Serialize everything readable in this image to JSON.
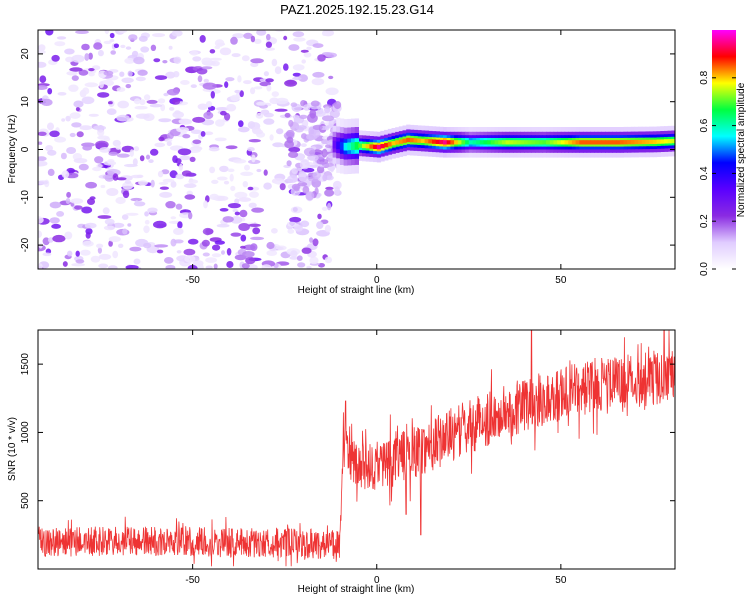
{
  "figure_title": "PAZ1.2025.192.15.23.G14",
  "chart_data": [
    {
      "type": "heatmap",
      "title": "PAZ1.2025.192.15.23.G14",
      "xlabel": "Height of straight line (km)",
      "ylabel": "Frequency (Hz)",
      "xlim": [
        -92,
        81
      ],
      "ylim": [
        -25,
        25
      ],
      "xticks": [
        -50,
        0,
        50
      ],
      "yticks": [
        -20,
        -10,
        0,
        10,
        20
      ],
      "colorbar": {
        "label": "Normalized spectral amplitude",
        "range": [
          0,
          1
        ],
        "ticks": [
          0.0,
          0.2,
          0.4,
          0.6,
          0.8
        ],
        "tick_labels": [
          "0.0",
          "0.2",
          "0.4",
          "0.6",
          "0.8"
        ],
        "colormap": [
          "#ffffff",
          "#e0ccff",
          "#8a2be2",
          "#5a00ff",
          "#0000ff",
          "#00ffff",
          "#00ff40",
          "#ffff00",
          "#ff0000",
          "#ff00ff"
        ]
      },
      "noise_region": {
        "x_range": [
          -92,
          -12
        ],
        "y_range": [
          -25,
          25
        ],
        "amplitude_range": [
          0.05,
          0.3
        ]
      },
      "ridge": [
        {
          "x": -12,
          "y": 1.0,
          "amplitude": 0.3
        },
        {
          "x": -9,
          "y": 0.6,
          "amplitude": 0.55
        },
        {
          "x": -5,
          "y": 0.8,
          "amplitude": 0.7
        },
        {
          "x": 0,
          "y": 0.5,
          "amplitude": 0.95
        },
        {
          "x": 4,
          "y": 1.3,
          "amplitude": 0.8
        },
        {
          "x": 8,
          "y": 2.0,
          "amplitude": 0.85
        },
        {
          "x": 12,
          "y": 1.8,
          "amplitude": 0.8
        },
        {
          "x": 18,
          "y": 1.5,
          "amplitude": 0.95
        },
        {
          "x": 25,
          "y": 1.5,
          "amplitude": 0.6
        },
        {
          "x": 35,
          "y": 1.5,
          "amplitude": 0.75
        },
        {
          "x": 45,
          "y": 1.5,
          "amplitude": 0.7
        },
        {
          "x": 55,
          "y": 1.5,
          "amplitude": 0.85
        },
        {
          "x": 65,
          "y": 1.5,
          "amplitude": 0.85
        },
        {
          "x": 75,
          "y": 1.6,
          "amplitude": 0.8
        },
        {
          "x": 81,
          "y": 1.8,
          "amplitude": 0.75
        }
      ]
    },
    {
      "type": "line",
      "xlabel": "Height of straight line (km)",
      "ylabel": "SNR (10 * v/v)",
      "xlim": [
        -92,
        81
      ],
      "ylim": [
        0,
        1750
      ],
      "xticks": [
        -50,
        0,
        50
      ],
      "yticks": [
        500,
        1000,
        1500
      ],
      "series": [
        {
          "color": "#ee3333",
          "trend": [
            {
              "x": -92,
              "y": 200
            },
            {
              "x": -60,
              "y": 200
            },
            {
              "x": -30,
              "y": 190
            },
            {
              "x": -10,
              "y": 180
            },
            {
              "x": -9,
              "y": 900
            },
            {
              "x": -5,
              "y": 720
            },
            {
              "x": 0,
              "y": 750
            },
            {
              "x": 5,
              "y": 820
            },
            {
              "x": 10,
              "y": 850
            },
            {
              "x": 20,
              "y": 980
            },
            {
              "x": 30,
              "y": 1100
            },
            {
              "x": 40,
              "y": 1200
            },
            {
              "x": 50,
              "y": 1280
            },
            {
              "x": 60,
              "y": 1350
            },
            {
              "x": 70,
              "y": 1380
            },
            {
              "x": 81,
              "y": 1420
            }
          ],
          "noise_amplitude": [
            {
              "x": -92,
              "y": 110
            },
            {
              "x": -10,
              "y": 110
            },
            {
              "x": -9,
              "y": 180
            },
            {
              "x": 20,
              "y": 200
            },
            {
              "x": 81,
              "y": 200
            }
          ],
          "features": [
            {
              "x": -8.5,
              "y": 1230
            },
            {
              "x": 8,
              "y": 400
            },
            {
              "x": 12,
              "y": 250
            },
            {
              "x": 42,
              "y": 1750
            },
            {
              "x": 78,
              "y": 1750
            }
          ]
        }
      ]
    }
  ]
}
